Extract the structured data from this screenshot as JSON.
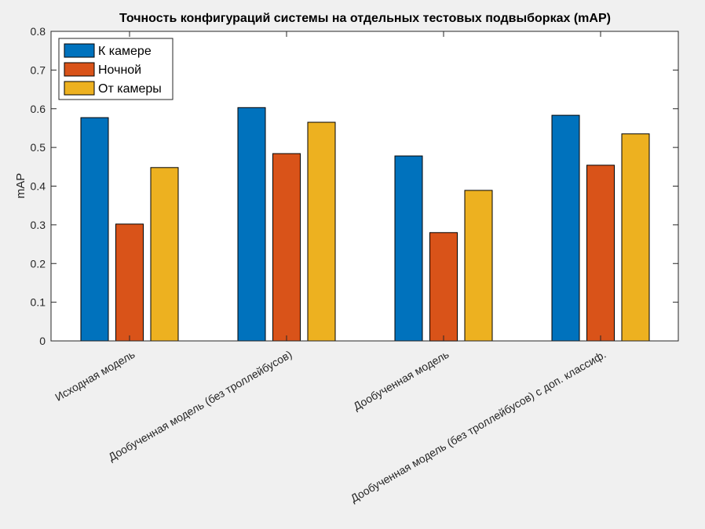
{
  "chart_data": {
    "type": "bar",
    "title": "Точность конфигураций системы на отдельных тестовых подвыборках (mAP)",
    "ylabel": "mAP",
    "xlabel": "",
    "ylim": [
      0,
      0.8
    ],
    "yticks": [
      "0",
      "0.1",
      "0.2",
      "0.3",
      "0.4",
      "0.5",
      "0.6",
      "0.7",
      "0.8"
    ],
    "categories": [
      "Исходная модель",
      "Дообученная модель (без троллейбусов)",
      "Дообученная модель",
      "Дообученная модель (без троллейбусов) с доп. классиф."
    ],
    "series": [
      {
        "name": "К камере",
        "color": "#0072bd",
        "values": [
          0.577,
          0.603,
          0.478,
          0.583
        ]
      },
      {
        "name": "Ночной",
        "color": "#d95319",
        "values": [
          0.302,
          0.484,
          0.28,
          0.454
        ]
      },
      {
        "name": "От камеры",
        "color": "#edb120",
        "values": [
          0.448,
          0.565,
          0.389,
          0.535
        ]
      }
    ],
    "legend_position": "top-left",
    "grid": false
  }
}
